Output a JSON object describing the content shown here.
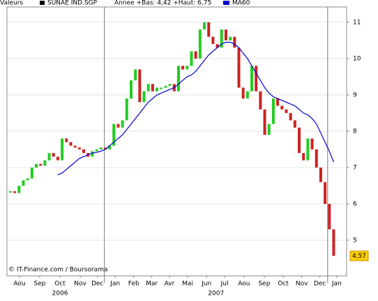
{
  "chart_data": {
    "type": "stock",
    "header": {
      "label": "Valeurs",
      "annotation": "Annee +Bas: 4,42 +Haut: 6,75"
    },
    "watermark": "© IT-Finance.com / Boursorama",
    "x": [
      0,
      1,
      2,
      3,
      4,
      5,
      6,
      7,
      8,
      9,
      10,
      11,
      12,
      13,
      14,
      15,
      16,
      17,
      18,
      19,
      20,
      21,
      22,
      23,
      24,
      25,
      26,
      27,
      28,
      29,
      30,
      31,
      32,
      33,
      34,
      35,
      36,
      37,
      38,
      39,
      40,
      41,
      42,
      43,
      44,
      45,
      46,
      47,
      48,
      49,
      50,
      51,
      52,
      53,
      54,
      55,
      56,
      57,
      58,
      59,
      60,
      61,
      62,
      63,
      64,
      65,
      66,
      67,
      68,
      69,
      70,
      71,
      72,
      73,
      74,
      75
    ],
    "series": [
      {
        "name": "SUNAE IND.SGP",
        "color": "#000000",
        "up_color": "#22cc22",
        "down_color": "#cc2222",
        "values": [
          6.35,
          6.3,
          6.5,
          6.65,
          6.7,
          7.0,
          7.1,
          7.05,
          7.2,
          7.4,
          7.3,
          7.2,
          7.8,
          7.7,
          7.6,
          7.55,
          7.5,
          7.4,
          7.3,
          7.45,
          7.5,
          7.55,
          7.5,
          7.6,
          8.2,
          8.1,
          8.3,
          8.9,
          9.4,
          9.7,
          8.8,
          9.1,
          9.3,
          9.1,
          9.2,
          9.2,
          9.25,
          9.3,
          9.1,
          9.8,
          9.7,
          9.8,
          10.2,
          10.0,
          10.8,
          11.0,
          10.6,
          10.4,
          10.3,
          10.8,
          10.5,
          10.6,
          10.3,
          9.2,
          8.9,
          9.1,
          9.8,
          9.1,
          8.6,
          7.9,
          8.2,
          8.9,
          8.7,
          8.6,
          8.5,
          8.3,
          8.1,
          7.4,
          7.2,
          7.8,
          7.5,
          7.0,
          6.6,
          6.0,
          5.3,
          4.57
        ],
        "value_labels": [
          null,
          null,
          null,
          null,
          null,
          null,
          null,
          null,
          null,
          null,
          null,
          null,
          null,
          null,
          null,
          null,
          null,
          null,
          null,
          null,
          null,
          null,
          null,
          null,
          null,
          null,
          null,
          null,
          null,
          null,
          null,
          null,
          null,
          null,
          null,
          null,
          null,
          null,
          null,
          null,
          null,
          null,
          null,
          null,
          null,
          null,
          null,
          null,
          null,
          null,
          null,
          null,
          null,
          null,
          null,
          null,
          null,
          null,
          null,
          null,
          null,
          null,
          null,
          null,
          null,
          null,
          null,
          null,
          null,
          null,
          null,
          null,
          null,
          null,
          null,
          "4,57"
        ]
      },
      {
        "name": "MA60",
        "color": "#0000cc",
        "values": [
          null,
          null,
          null,
          null,
          null,
          null,
          null,
          null,
          null,
          null,
          null,
          6.8,
          6.85,
          6.95,
          7.05,
          7.15,
          7.25,
          7.3,
          7.35,
          7.4,
          7.42,
          7.45,
          7.5,
          7.6,
          7.7,
          7.8,
          7.9,
          8.05,
          8.2,
          8.35,
          8.5,
          8.65,
          8.8,
          8.9,
          9.0,
          9.05,
          9.1,
          9.15,
          9.2,
          9.3,
          9.4,
          9.5,
          9.55,
          9.65,
          9.8,
          9.95,
          10.1,
          10.2,
          10.3,
          10.4,
          10.45,
          10.45,
          10.4,
          10.3,
          10.15,
          10.0,
          9.8,
          9.6,
          9.4,
          9.2,
          9.05,
          8.95,
          8.9,
          8.85,
          8.8,
          8.75,
          8.7,
          8.6,
          8.5,
          8.45,
          8.35,
          8.2,
          7.95,
          7.7,
          7.45,
          7.15
        ]
      }
    ],
    "xlim": [
      -0.8,
      78
    ],
    "xticks": [
      {
        "value": 2.1,
        "label": "Aou"
      },
      {
        "value": 6.8,
        "label": "Sep"
      },
      {
        "value": 11.5,
        "label": "Oct"
      },
      {
        "value": 16.2,
        "label": "Nov"
      },
      {
        "value": 20.2,
        "label": "Dec"
      },
      {
        "value": 24.3,
        "label": "Jan"
      },
      {
        "value": 28.6,
        "label": "Feb"
      },
      {
        "value": 32.8,
        "label": "Mar"
      },
      {
        "value": 36.9,
        "label": "Avr"
      },
      {
        "value": 41.1,
        "label": "Mai"
      },
      {
        "value": 45.5,
        "label": "Jun"
      },
      {
        "value": 49.7,
        "label": "Jul"
      },
      {
        "value": 54.2,
        "label": "Aou"
      },
      {
        "value": 58.9,
        "label": "Sep"
      },
      {
        "value": 63.3,
        "label": "Oct"
      },
      {
        "value": 67.6,
        "label": "Nov"
      },
      {
        "value": 71.8,
        "label": "Dec"
      },
      {
        "value": 75.7,
        "label": "Jan"
      }
    ],
    "year_ticks": [
      {
        "value": 11.5,
        "label": "2006"
      },
      {
        "value": 47.7,
        "label": "2007"
      }
    ],
    "separators": [
      21.8,
      73.6
    ],
    "ylim": [
      4.02,
      11.42
    ],
    "yticks": [
      5,
      6,
      7,
      8,
      9,
      10,
      11
    ],
    "grid": true
  }
}
